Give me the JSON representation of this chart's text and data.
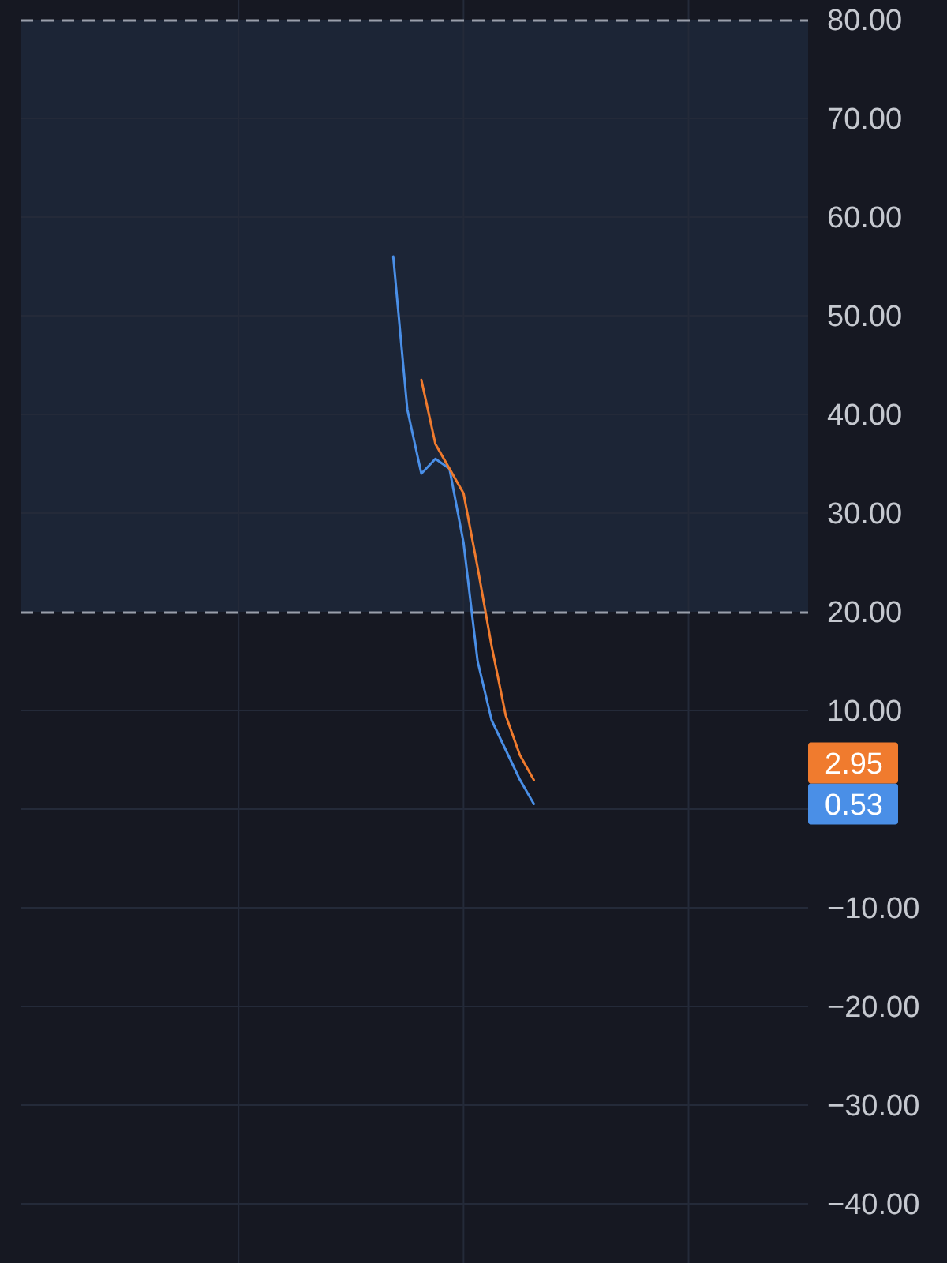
{
  "chart_data": {
    "type": "line",
    "categories": [
      null,
      null,
      null,
      null,
      null,
      null,
      null,
      null,
      null,
      null,
      null,
      null,
      null,
      null,
      null,
      null,
      null,
      null,
      null,
      null,
      null,
      null,
      null,
      null,
      null,
      null,
      null,
      null,
      null,
      null,
      null,
      null,
      null,
      null,
      null,
      null,
      null,
      null,
      null,
      null,
      null,
      null,
      null,
      null,
      null,
      null,
      null,
      null,
      null,
      null,
      null,
      null,
      null,
      null,
      null,
      null
    ],
    "series": [
      {
        "color": "#4a8fe7",
        "values": [
          null,
          null,
          null,
          null,
          null,
          null,
          null,
          null,
          null,
          null,
          null,
          null,
          null,
          null,
          null,
          null,
          null,
          null,
          null,
          null,
          null,
          null,
          null,
          null,
          null,
          null,
          56,
          40.5,
          34,
          35.5,
          34.5,
          27,
          15,
          9,
          6,
          3,
          0.53,
          null,
          null,
          null,
          null,
          null,
          null,
          null,
          null,
          null,
          null,
          null,
          null,
          null,
          null,
          null,
          null,
          null,
          null,
          null
        ]
      },
      {
        "color": "#f07b2e",
        "values": [
          null,
          null,
          null,
          null,
          null,
          null,
          null,
          null,
          null,
          null,
          null,
          null,
          null,
          null,
          null,
          null,
          null,
          null,
          null,
          null,
          null,
          null,
          null,
          null,
          null,
          null,
          null,
          null,
          43.5,
          37,
          34.5,
          32,
          24.5,
          16.5,
          9.5,
          5.5,
          2.95,
          null,
          null,
          null,
          null,
          null,
          null,
          null,
          null,
          null,
          null,
          null,
          null,
          null,
          null,
          null,
          null,
          null,
          null,
          null
        ]
      }
    ],
    "annotations": [
      "0.53",
      "2.95"
    ],
    "ylim": [
      -46,
      82
    ],
    "yticks": [
      {
        "value": 80,
        "label": "80.00"
      },
      {
        "value": 70,
        "label": "70.00"
      },
      {
        "value": 60,
        "label": "60.00"
      },
      {
        "value": 50,
        "label": "50.00"
      },
      {
        "value": 40,
        "label": "40.00"
      },
      {
        "value": 30,
        "label": "30.00"
      },
      {
        "value": 20,
        "label": "20.00"
      },
      {
        "value": 10,
        "label": "10.00"
      },
      {
        "value": 0,
        "label": null
      },
      {
        "value": -10,
        "label": "−10.00"
      },
      {
        "value": -20,
        "label": "−20.00"
      },
      {
        "value": -30,
        "label": "−30.00"
      },
      {
        "value": -40,
        "label": "−40.00"
      }
    ],
    "grid": true,
    "bands": [
      {
        "axis": "y",
        "from": 20,
        "to": 80,
        "color": "#1c2536"
      }
    ],
    "line_style": "solid"
  }
}
